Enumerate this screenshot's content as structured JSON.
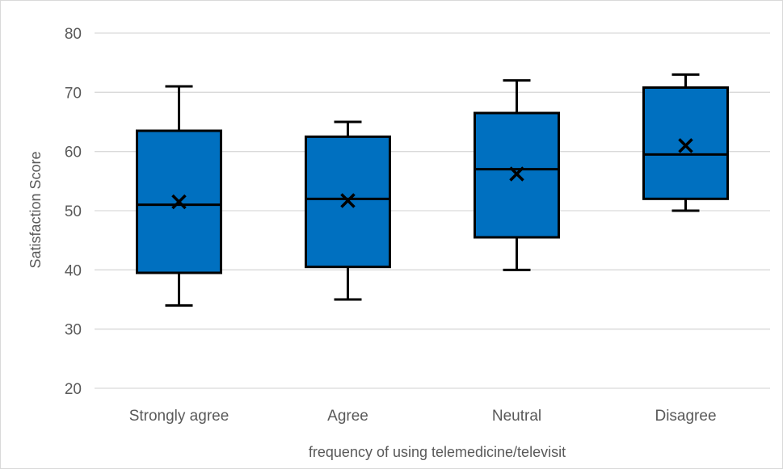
{
  "chart_data": {
    "type": "boxplot",
    "title": "",
    "xlabel": "frequency of using telemedicine/televisit",
    "ylabel": "Satisfaction Score",
    "ylim": [
      20,
      80
    ],
    "yticks": [
      20,
      30,
      40,
      50,
      60,
      70,
      80
    ],
    "grid": true,
    "legend": "none",
    "box_color": "#0070c0",
    "categories": [
      "Strongly agree",
      "Agree",
      "Neutral",
      "Disagree"
    ],
    "series": [
      {
        "category": "Strongly agree",
        "min": 34,
        "q1": 39.5,
        "median": 51,
        "q3": 63.5,
        "max": 71,
        "mean": 51.5
      },
      {
        "category": "Agree",
        "min": 35,
        "q1": 40.5,
        "median": 52,
        "q3": 62.5,
        "max": 65,
        "mean": 51.7
      },
      {
        "category": "Neutral",
        "min": 40,
        "q1": 45.5,
        "median": 57,
        "q3": 66.5,
        "max": 72,
        "mean": 56.2
      },
      {
        "category": "Disagree",
        "min": 50,
        "q1": 52,
        "median": 59.5,
        "q3": 70.8,
        "max": 73,
        "mean": 61
      }
    ]
  }
}
